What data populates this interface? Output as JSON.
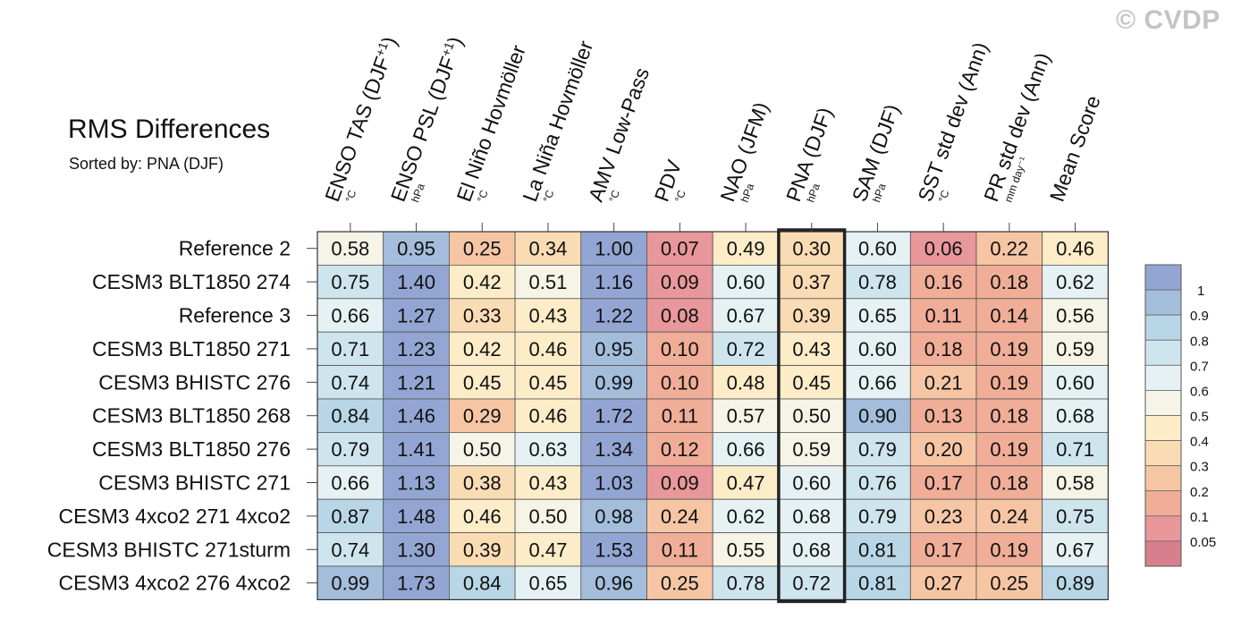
{
  "watermark": "© CVDP",
  "chart_data": {
    "type": "heatmap",
    "title": "RMS Differences",
    "subtitle": "Sorted by: PNA (DJF)",
    "highlight_column": "PNA (DJF)",
    "columns": [
      {
        "label": "ENSO TAS (DJF",
        "sup": "+1",
        "suffix": ")",
        "unit": "°C"
      },
      {
        "label": "ENSO PSL (DJF",
        "sup": "+1",
        "suffix": ")",
        "unit": "hPa"
      },
      {
        "label": "El Niño Hovmöller",
        "sup": "",
        "suffix": "",
        "unit": "°C"
      },
      {
        "label": "La Niña Hovmöller",
        "sup": "",
        "suffix": "",
        "unit": "°C"
      },
      {
        "label": "AMV Low-Pass",
        "sup": "",
        "suffix": "",
        "unit": "°C"
      },
      {
        "label": "PDV",
        "sup": "",
        "suffix": "",
        "unit": "°C"
      },
      {
        "label": "NAO (JFM)",
        "sup": "",
        "suffix": "",
        "unit": "hPa"
      },
      {
        "label": "PNA (DJF)",
        "sup": "",
        "suffix": "",
        "unit": "hPa"
      },
      {
        "label": "SAM (DJF)",
        "sup": "",
        "suffix": "",
        "unit": "hPa"
      },
      {
        "label": "SST std dev (Ann)",
        "sup": "",
        "suffix": "",
        "unit": "°C"
      },
      {
        "label": "PR std dev (Ann)",
        "sup": "",
        "suffix": "",
        "unit": "mm day⁻¹"
      },
      {
        "label": "Mean Score",
        "sup": "",
        "suffix": "",
        "unit": ""
      }
    ],
    "rows": [
      "Reference 2",
      "CESM3 BLT1850 274",
      "Reference 3",
      "CESM3 BLT1850 271",
      "CESM3 BHISTC 276",
      "CESM3 BLT1850 268",
      "CESM3 BLT1850 276",
      "CESM3 BHISTC 271",
      "CESM3 4xco2 271 4xco2",
      "CESM3 BHISTC 271sturm",
      "CESM3 4xco2 276 4xco2"
    ],
    "values": [
      [
        "0.58",
        "0.95",
        "0.25",
        "0.34",
        "1.00",
        "0.07",
        "0.49",
        "0.30",
        "0.60",
        "0.06",
        "0.22",
        "0.46"
      ],
      [
        "0.75",
        "1.40",
        "0.42",
        "0.51",
        "1.16",
        "0.09",
        "0.60",
        "0.37",
        "0.78",
        "0.16",
        "0.18",
        "0.62"
      ],
      [
        "0.66",
        "1.27",
        "0.33",
        "0.43",
        "1.22",
        "0.08",
        "0.67",
        "0.39",
        "0.65",
        "0.11",
        "0.14",
        "0.56"
      ],
      [
        "0.71",
        "1.23",
        "0.42",
        "0.46",
        "0.95",
        "0.10",
        "0.72",
        "0.43",
        "0.60",
        "0.18",
        "0.19",
        "0.59"
      ],
      [
        "0.74",
        "1.21",
        "0.45",
        "0.45",
        "0.99",
        "0.10",
        "0.48",
        "0.45",
        "0.66",
        "0.21",
        "0.19",
        "0.60"
      ],
      [
        "0.84",
        "1.46",
        "0.29",
        "0.46",
        "1.72",
        "0.11",
        "0.57",
        "0.50",
        "0.90",
        "0.13",
        "0.18",
        "0.68"
      ],
      [
        "0.79",
        "1.41",
        "0.50",
        "0.63",
        "1.34",
        "0.12",
        "0.66",
        "0.59",
        "0.79",
        "0.20",
        "0.19",
        "0.71"
      ],
      [
        "0.66",
        "1.13",
        "0.38",
        "0.43",
        "1.03",
        "0.09",
        "0.47",
        "0.60",
        "0.76",
        "0.17",
        "0.18",
        "0.58"
      ],
      [
        "0.87",
        "1.48",
        "0.46",
        "0.50",
        "0.98",
        "0.24",
        "0.62",
        "0.68",
        "0.79",
        "0.23",
        "0.24",
        "0.75"
      ],
      [
        "0.74",
        "1.30",
        "0.39",
        "0.47",
        "1.53",
        "0.11",
        "0.55",
        "0.68",
        "0.81",
        "0.17",
        "0.19",
        "0.67"
      ],
      [
        "0.99",
        "1.73",
        "0.84",
        "0.65",
        "0.96",
        "0.25",
        "0.78",
        "0.72",
        "0.81",
        "0.27",
        "0.25",
        "0.89"
      ]
    ],
    "colorbar": {
      "labels": [
        "1",
        "0.9",
        "0.8",
        "0.7",
        "0.6",
        "0.5",
        "0.4",
        "0.3",
        "0.2",
        "0.1",
        "0.05"
      ],
      "bounds": [
        0.05,
        0.1,
        0.2,
        0.3,
        0.4,
        0.5,
        0.6,
        0.7,
        0.8,
        0.9,
        1.0
      ],
      "colors": [
        "#d97e8c",
        "#e8979a",
        "#f0ad98",
        "#f6c6a4",
        "#fadcb4",
        "#fcecc8",
        "#f5f4e6",
        "#e6f1f4",
        "#cfe5ee",
        "#b8d6e6",
        "#a3bddb",
        "#93a6d3"
      ]
    }
  }
}
